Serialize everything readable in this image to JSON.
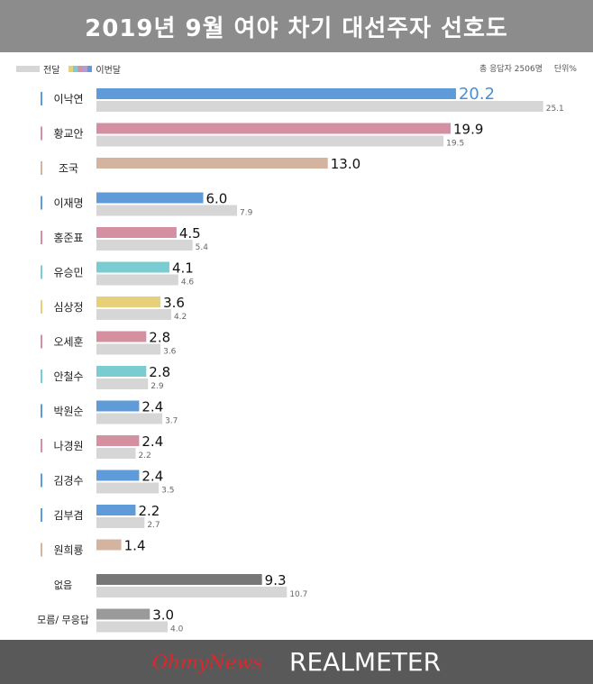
{
  "title": "2019년 9월 여야 차기 대선주자 선호도",
  "legend": {
    "prev": "전달",
    "curr": "이번달"
  },
  "meta": {
    "respondents": "총 응답자 2506명",
    "unit": "단위%"
  },
  "footer": {
    "brand1": "OhmyNews",
    "brand2": "REALMETER"
  },
  "colors": {
    "prev": "#d6d6d6",
    "blue": "#5f9bd8",
    "pink": "#d48fa0",
    "tan": "#d4b4a0",
    "teal": "#79cdd2",
    "yellow": "#e8d07a",
    "darkgray": "#777777",
    "midgray": "#9a9a9a",
    "highlight": "#4a8fd4"
  },
  "chart_data": {
    "type": "bar",
    "orientation": "horizontal",
    "title": "2019년 9월 여야 차기 대선주자 선호도",
    "series": [
      {
        "name": "이번달",
        "values": [
          20.2,
          19.9,
          13.0,
          6.0,
          4.5,
          4.1,
          3.6,
          2.8,
          2.8,
          2.4,
          2.4,
          2.4,
          2.2,
          1.4,
          9.3,
          3.0
        ]
      },
      {
        "name": "전달",
        "values": [
          25.1,
          19.5,
          null,
          7.9,
          5.4,
          4.6,
          4.2,
          3.6,
          2.9,
          3.7,
          2.2,
          3.5,
          2.7,
          null,
          10.7,
          4.0
        ]
      }
    ],
    "categories": [
      "이낙연",
      "황교안",
      "조국",
      "이재명",
      "홍준표",
      "유승민",
      "심상정",
      "오세훈",
      "안철수",
      "박원순",
      "나경원",
      "김경수",
      "김부겸",
      "원희룡",
      "없음",
      "모름/ 무응답"
    ],
    "bar_colors": [
      "blue",
      "pink",
      "tan",
      "blue",
      "pink",
      "teal",
      "yellow",
      "pink",
      "teal",
      "blue",
      "pink",
      "blue",
      "blue",
      "tan",
      "darkgray",
      "midgray"
    ],
    "label_text": [
      "20.2",
      "19.9",
      "13.0",
      "6.0",
      "4.5",
      "4.1",
      "3.6",
      "2.8",
      "2.8",
      "2.4",
      "2.4",
      "2.4",
      "2.2",
      "1.4",
      "9.3",
      "3.0"
    ],
    "prev_label_text": [
      "25.1",
      "19.5",
      "",
      "7.9",
      "5.4",
      "4.6",
      "4.2",
      "3.6",
      "2.9",
      "3.7",
      "2.2",
      "3.5",
      "2.7",
      "",
      "10.7",
      "4.0"
    ],
    "xlim": [
      0,
      26
    ],
    "unit": "%"
  }
}
